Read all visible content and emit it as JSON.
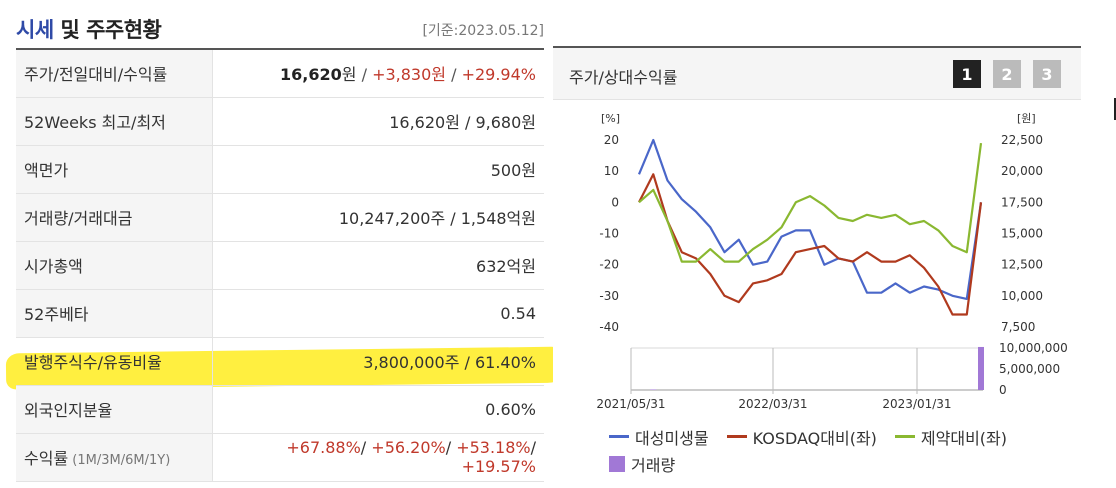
{
  "header": {
    "title_part1": "시세",
    "title_part2": " 및 주주현황",
    "as_of": "[기준:2023.05.12]"
  },
  "quote_rows": {
    "price": {
      "label": "주가/전일대비/수익률",
      "price": "16,620",
      "price_unit": "원",
      "sep1": " / ",
      "change": "+3,830원",
      "sep2": " / ",
      "pct": "+29.94%"
    },
    "wk52": {
      "label": "52Weeks 최고/최저",
      "value": "16,620원 / 9,680원"
    },
    "par": {
      "label": "액면가",
      "value": "500원"
    },
    "volume": {
      "label": "거래량/거래대금",
      "value": "10,247,200주 / 1,548억원"
    },
    "mktcap": {
      "label": "시가총액",
      "value": "632억원"
    },
    "beta": {
      "label": "52주베타",
      "value": "0.54"
    },
    "shares": {
      "label": "발행주식수/유동비율",
      "value": "3,800,000주 / 61.40%"
    },
    "foreign": {
      "label": "외국인지분율",
      "value": "0.60%"
    },
    "returns": {
      "label": "수익률",
      "sub": " (1M/3M/6M/1Y)",
      "r1": "+67.88%",
      "r2": "+56.20%",
      "r3": "+53.18%",
      "r4": "+19.57%",
      "slash": "/ "
    }
  },
  "chart_panel": {
    "title": "주가/상대수익률",
    "pages": [
      "1",
      "2",
      "3"
    ],
    "active_page": "1"
  },
  "chart_data": {
    "type": "line",
    "left_axis": {
      "label": "[%]",
      "ticks": [
        "20",
        "10",
        "0",
        "-10",
        "-20",
        "-30",
        "-40"
      ],
      "range": [
        -40,
        20
      ]
    },
    "right_axis": {
      "label": "[원]",
      "ticks": [
        "22,500",
        "20,000",
        "17,500",
        "15,000",
        "12,500",
        "10,000",
        "7,500"
      ],
      "range": [
        7500,
        22500
      ]
    },
    "volume_axis": {
      "ticks": [
        "10,000,000",
        "5,000,000",
        "0"
      ],
      "range": [
        0,
        10000000
      ]
    },
    "x_ticks": [
      "2021/05/31",
      "2022/03/31",
      "2023/01/31"
    ],
    "series": [
      {
        "name": "대성미생물",
        "color": "#4a67c9",
        "axis": "left",
        "values": [
          9,
          20,
          7,
          1,
          -3,
          -8,
          -16,
          -12,
          -20,
          -19,
          -11,
          -9,
          -9,
          -20,
          -18,
          -19,
          -29,
          -29,
          -26,
          -29,
          -27,
          -28,
          -30,
          -31,
          0
        ]
      },
      {
        "name": "KOSDAQ대비(좌)",
        "color": "#b03a1e",
        "axis": "left",
        "values": [
          0,
          9,
          -6,
          -16,
          -18,
          -23,
          -30,
          -32,
          -26,
          -25,
          -23,
          -16,
          -15,
          -14,
          -18,
          -19,
          -16,
          -19,
          -19,
          -17,
          -21,
          -27,
          -36,
          -36,
          0
        ]
      },
      {
        "name": "제약대비(좌)",
        "color": "#8ab831",
        "axis": "left",
        "values": [
          0,
          4,
          -6,
          -19,
          -19,
          -15,
          -19,
          -19,
          -15,
          -12,
          -8,
          0,
          2,
          -1,
          -5,
          -6,
          -4,
          -5,
          -4,
          -7,
          -6,
          -9,
          -14,
          -16,
          19
        ]
      },
      {
        "name": "거래량",
        "color": "#a178d6",
        "axis": "volume",
        "values": [
          0,
          120000,
          0,
          0,
          0,
          0,
          0,
          0,
          0,
          0,
          0,
          0,
          0,
          0,
          0,
          0,
          0,
          0,
          0,
          0,
          0,
          0,
          0,
          0,
          10247200
        ]
      }
    ],
    "legend": [
      "대성미생물",
      "KOSDAQ대비(좌)",
      "제약대비(좌)",
      "거래량"
    ]
  }
}
